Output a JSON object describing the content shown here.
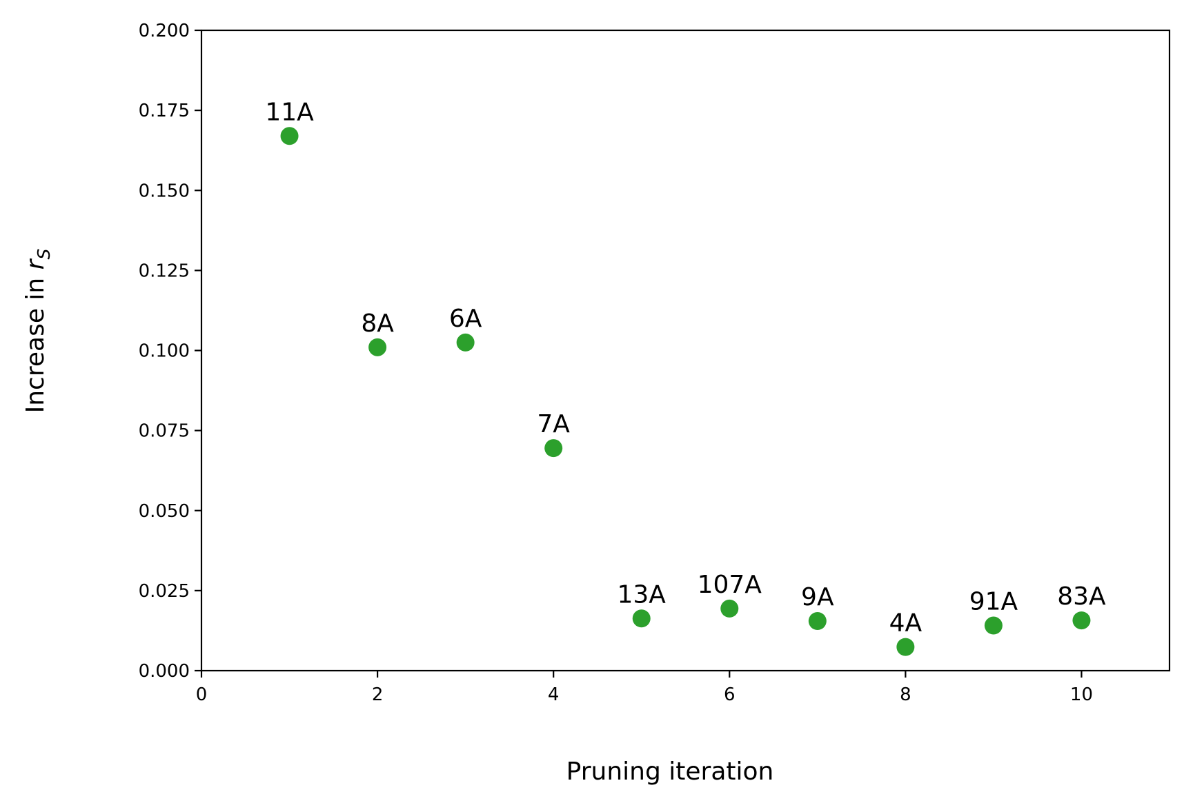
{
  "chart_data": {
    "type": "scatter",
    "title": "",
    "xlabel": "Pruning iteration",
    "ylabel_text": "Increase in ",
    "ylabel_symbol": "r",
    "ylabel_subscript": "S",
    "xlim": [
      0,
      11
    ],
    "ylim": [
      0,
      0.2
    ],
    "xticks": [
      0,
      2,
      4,
      6,
      8,
      10
    ],
    "xtick_labels": [
      "0",
      "2",
      "4",
      "6",
      "8",
      "10"
    ],
    "yticks": [
      0,
      0.025,
      0.05,
      0.075,
      0.1,
      0.125,
      0.15,
      0.175,
      0.2
    ],
    "ytick_labels": [
      "0.000",
      "0.025",
      "0.050",
      "0.075",
      "0.100",
      "0.125",
      "0.150",
      "0.175",
      "0.200"
    ],
    "grid": false,
    "legend": "none",
    "color": "#2ca02c",
    "points": [
      {
        "x": 1,
        "y": 0.167,
        "label": "11A"
      },
      {
        "x": 2,
        "y": 0.101,
        "label": "8A"
      },
      {
        "x": 3,
        "y": 0.1025,
        "label": "6A"
      },
      {
        "x": 4,
        "y": 0.0695,
        "label": "7A"
      },
      {
        "x": 5,
        "y": 0.0163,
        "label": "13A"
      },
      {
        "x": 6,
        "y": 0.0194,
        "label": "107A"
      },
      {
        "x": 7,
        "y": 0.0155,
        "label": "9A"
      },
      {
        "x": 8,
        "y": 0.0074,
        "label": "4A"
      },
      {
        "x": 9,
        "y": 0.0141,
        "label": "91A"
      },
      {
        "x": 10,
        "y": 0.0157,
        "label": "83A"
      }
    ]
  }
}
